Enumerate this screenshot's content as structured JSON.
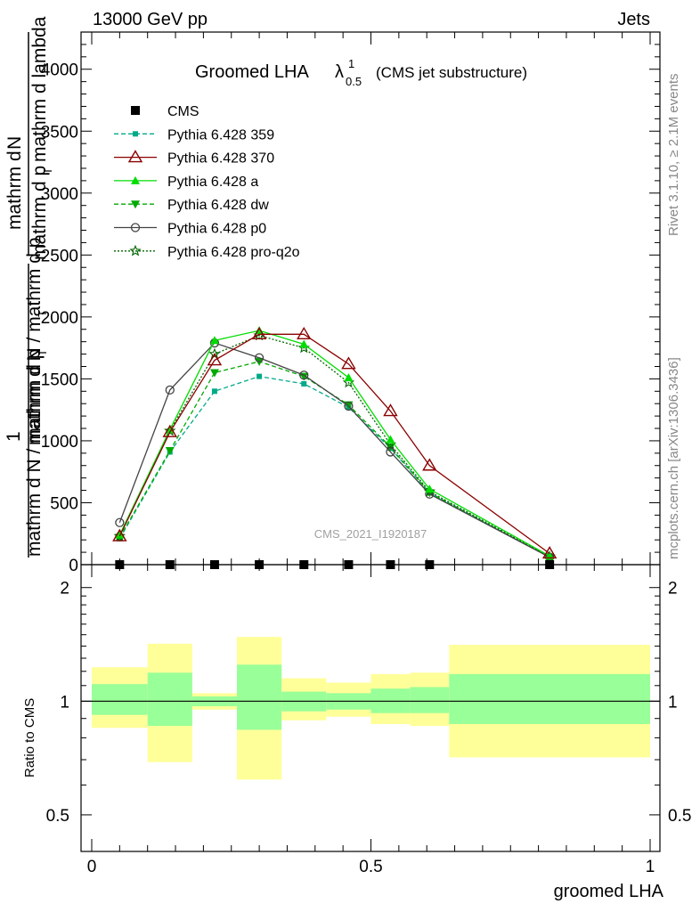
{
  "header": {
    "energy_label": "13000 GeV pp",
    "process_label": "Jets",
    "plot_title": "Groomed LHA",
    "title_lambda": "λ",
    "title_sup": "1",
    "title_sub": "0.5",
    "title_suffix": "(CMS jet substructure)",
    "analysis_id": "CMS_2021_I1920187",
    "rivet_label": "Rivet 3.1.10, ≥ 2.1M events",
    "mcplots_label": "mcplots.cern.ch [arXiv:1306.3436]"
  },
  "ylabel": {
    "top_numerator": "mathrm d",
    "top_symbol": "N",
    "top_denominator": "mathrm d p",
    "top_denominator_sub": "T",
    "top_denominator_rest": "mathrm d lambda",
    "one": "1",
    "bottom_line": "mathrm d N / mathrm d p",
    "bottom_line_sub": "T",
    "bottom_denominator": "mathrm d N / mathrm d p",
    "bottom_denominator_sub": "T",
    "ratio_label": "Ratio to CMS"
  },
  "xlabel": "groomed LHA",
  "colors": {
    "cms": "#000000",
    "p359": "#00aa88",
    "p370": "#8b0000",
    "pa": "#00dd00",
    "pdw": "#00aa00",
    "pp0": "#444444",
    "pq2o": "#006600",
    "band_outer": "#ffff99",
    "band_inner": "#99ff99"
  },
  "chart_data": [
    {
      "type": "line",
      "title": "Groomed LHA λ^1_0.5 (CMS jet substructure)",
      "xlabel": "groomed LHA",
      "ylabel": "1 / (mathrm d N / mathrm d p_T) · mathrm d^2 N / mathrm d p_T mathrm d lambda",
      "xlim": [
        0,
        1
      ],
      "ylim": [
        0,
        4300
      ],
      "yticks": [
        0,
        500,
        1000,
        1500,
        2000,
        2500,
        3000,
        3500,
        4000
      ],
      "ytick_labels": [
        "0",
        "500",
        "1000",
        "1500",
        "2000",
        "2500",
        "3000",
        "3500",
        "4000"
      ],
      "legend_position": "top-left",
      "series": [
        {
          "name": "CMS",
          "key": "cms",
          "style": "marker",
          "marker": "square",
          "x": [
            0.05,
            0.14,
            0.22,
            0.3,
            0.38,
            0.46,
            0.535,
            0.605,
            0.82
          ],
          "y": [
            0,
            0,
            0,
            0,
            0,
            0,
            0,
            0,
            0
          ]
        },
        {
          "name": "Pythia 6.428 359",
          "key": "p359",
          "style": "dashed",
          "marker": "small-square",
          "x": [
            0.05,
            0.14,
            0.22,
            0.3,
            0.38,
            0.46,
            0.535,
            0.605,
            0.82
          ],
          "y": [
            210,
            910,
            1400,
            1520,
            1460,
            1270,
            940,
            580,
            60
          ]
        },
        {
          "name": "Pythia 6.428 370",
          "key": "p370",
          "style": "solid",
          "marker": "open-triangle",
          "x": [
            0.05,
            0.14,
            0.22,
            0.3,
            0.38,
            0.46,
            0.535,
            0.605,
            0.82
          ],
          "y": [
            230,
            1070,
            1650,
            1860,
            1860,
            1620,
            1240,
            800,
            90
          ]
        },
        {
          "name": "Pythia 6.428 a",
          "key": "pa",
          "style": "solid",
          "marker": "filled-triangle",
          "x": [
            0.05,
            0.14,
            0.22,
            0.3,
            0.38,
            0.46,
            0.535,
            0.605,
            0.82
          ],
          "y": [
            240,
            1090,
            1810,
            1890,
            1780,
            1510,
            1010,
            610,
            70
          ]
        },
        {
          "name": "Pythia 6.428 dw",
          "key": "pdw",
          "style": "dashed",
          "marker": "filled-triangle-down",
          "x": [
            0.05,
            0.14,
            0.22,
            0.3,
            0.38,
            0.46,
            0.535,
            0.605,
            0.82
          ],
          "y": [
            220,
            920,
            1550,
            1640,
            1520,
            1290,
            950,
            580,
            60
          ]
        },
        {
          "name": "Pythia 6.428 p0",
          "key": "pp0",
          "style": "solid",
          "marker": "open-circle",
          "x": [
            0.05,
            0.14,
            0.22,
            0.3,
            0.38,
            0.46,
            0.535,
            0.605,
            0.82
          ],
          "y": [
            340,
            1410,
            1790,
            1670,
            1530,
            1280,
            910,
            570,
            60
          ]
        },
        {
          "name": "Pythia 6.428 pro-q2o",
          "key": "pq2o",
          "style": "dotted",
          "marker": "star",
          "x": [
            0.05,
            0.14,
            0.22,
            0.3,
            0.38,
            0.46,
            0.535,
            0.605,
            0.82
          ],
          "y": [
            230,
            1080,
            1700,
            1850,
            1750,
            1470,
            970,
            590,
            65
          ]
        }
      ]
    },
    {
      "type": "area",
      "title": "Ratio to CMS",
      "ylabel": "Ratio to CMS",
      "xlabel": "groomed LHA",
      "xlim": [
        0,
        1
      ],
      "ylim": [
        0.4,
        2.3
      ],
      "yscale": "log",
      "yticks": [
        0.5,
        1,
        2
      ],
      "ytick_labels": [
        "0.5",
        "1",
        "2"
      ],
      "xticks": [
        0,
        0.5,
        1
      ],
      "xtick_labels": [
        "0",
        "0.5",
        "1"
      ],
      "reference_line": 1,
      "bins": [
        {
          "x0": 0.0,
          "x1": 0.1,
          "outer": [
            0.85,
            1.23
          ],
          "inner": [
            0.92,
            1.11
          ]
        },
        {
          "x0": 0.1,
          "x1": 0.18,
          "outer": [
            0.69,
            1.42
          ],
          "inner": [
            0.86,
            1.19
          ]
        },
        {
          "x0": 0.18,
          "x1": 0.26,
          "outer": [
            0.95,
            1.05
          ],
          "inner": [
            0.97,
            1.03
          ]
        },
        {
          "x0": 0.26,
          "x1": 0.34,
          "outer": [
            0.62,
            1.48
          ],
          "inner": [
            0.84,
            1.25
          ]
        },
        {
          "x0": 0.34,
          "x1": 0.42,
          "outer": [
            0.89,
            1.15
          ],
          "inner": [
            0.94,
            1.06
          ]
        },
        {
          "x0": 0.42,
          "x1": 0.5,
          "outer": [
            0.91,
            1.12
          ],
          "inner": [
            0.95,
            1.05
          ]
        },
        {
          "x0": 0.5,
          "x1": 0.57,
          "outer": [
            0.87,
            1.18
          ],
          "inner": [
            0.93,
            1.08
          ]
        },
        {
          "x0": 0.57,
          "x1": 0.64,
          "outer": [
            0.86,
            1.19
          ],
          "inner": [
            0.93,
            1.09
          ]
        },
        {
          "x0": 0.64,
          "x1": 1.0,
          "outer": [
            0.71,
            1.41
          ],
          "inner": [
            0.87,
            1.18
          ]
        }
      ]
    }
  ]
}
